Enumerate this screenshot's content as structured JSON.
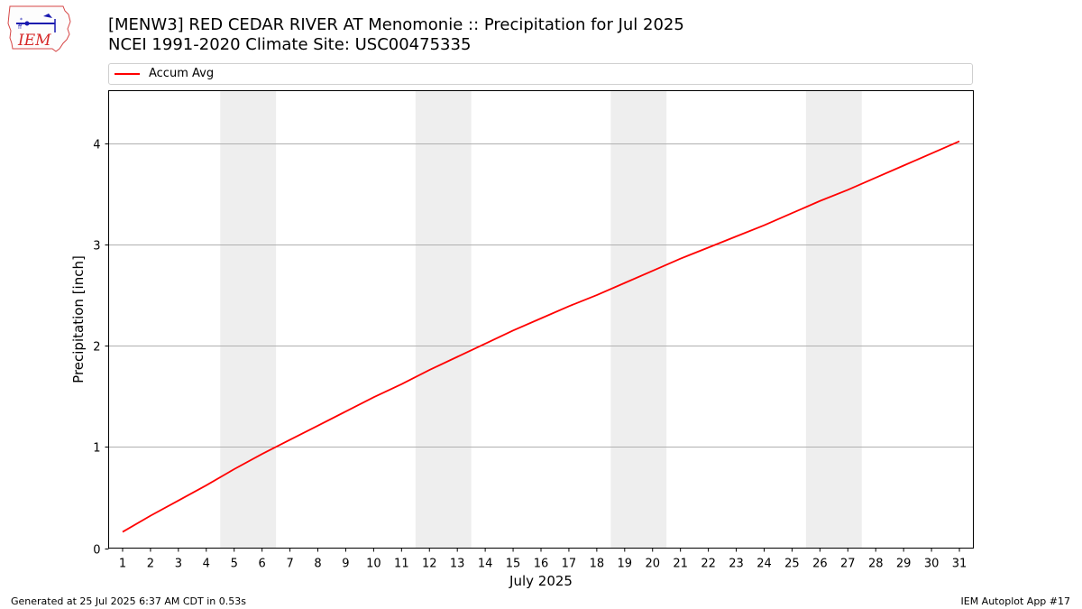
{
  "title": {
    "line1": "[MENW3] RED CEDAR RIVER  AT Menomonie :: Precipitation for Jul 2025",
    "line2": "NCEI 1991-2020 Climate Site: USC00475335"
  },
  "logo": {
    "text": "IEM",
    "icon": "iem-iowa-logo-icon"
  },
  "footer": {
    "generated": "Generated at 25 Jul 2025 6:37 AM CDT in 0.53s",
    "app": "IEM Autoplot App #17"
  },
  "colors": {
    "accum_avg": "#ff0000",
    "weekend_shade": "#eeeeee",
    "grid": "#b0b0b0"
  },
  "chart_data": {
    "type": "line",
    "title": "[MENW3] RED CEDAR RIVER  AT Menomonie :: Precipitation for Jul 2025",
    "subtitle": "NCEI 1991-2020 Climate Site: USC00475335",
    "xlabel": "July 2025",
    "ylabel": "Precipitation [inch]",
    "xlim": [
      0.5,
      31.5
    ],
    "ylim": [
      0,
      4.52
    ],
    "x_ticks": [
      1,
      2,
      3,
      4,
      5,
      6,
      7,
      8,
      9,
      10,
      11,
      12,
      13,
      14,
      15,
      16,
      17,
      18,
      19,
      20,
      21,
      22,
      23,
      24,
      25,
      26,
      27,
      28,
      29,
      30,
      31
    ],
    "y_ticks": [
      0,
      1,
      2,
      3,
      4
    ],
    "grid": "horizontal",
    "legend_position": "top",
    "shaded_x_ranges": [
      [
        4.5,
        6.5
      ],
      [
        11.5,
        13.5
      ],
      [
        18.5,
        20.5
      ],
      [
        25.5,
        27.5
      ]
    ],
    "series": [
      {
        "name": "Accum Avg",
        "x": [
          1,
          2,
          3,
          4,
          5,
          6,
          7,
          8,
          9,
          10,
          11,
          12,
          13,
          14,
          15,
          16,
          17,
          18,
          19,
          20,
          21,
          22,
          23,
          24,
          25,
          26,
          27,
          28,
          29,
          30,
          31
        ],
        "y": [
          0.16,
          0.32,
          0.47,
          0.62,
          0.78,
          0.93,
          1.07,
          1.21,
          1.35,
          1.49,
          1.62,
          1.76,
          1.89,
          2.02,
          2.15,
          2.27,
          2.39,
          2.5,
          2.62,
          2.74,
          2.86,
          2.97,
          3.08,
          3.19,
          3.31,
          3.43,
          3.54,
          3.66,
          3.78,
          3.9,
          4.02
        ]
      }
    ]
  }
}
